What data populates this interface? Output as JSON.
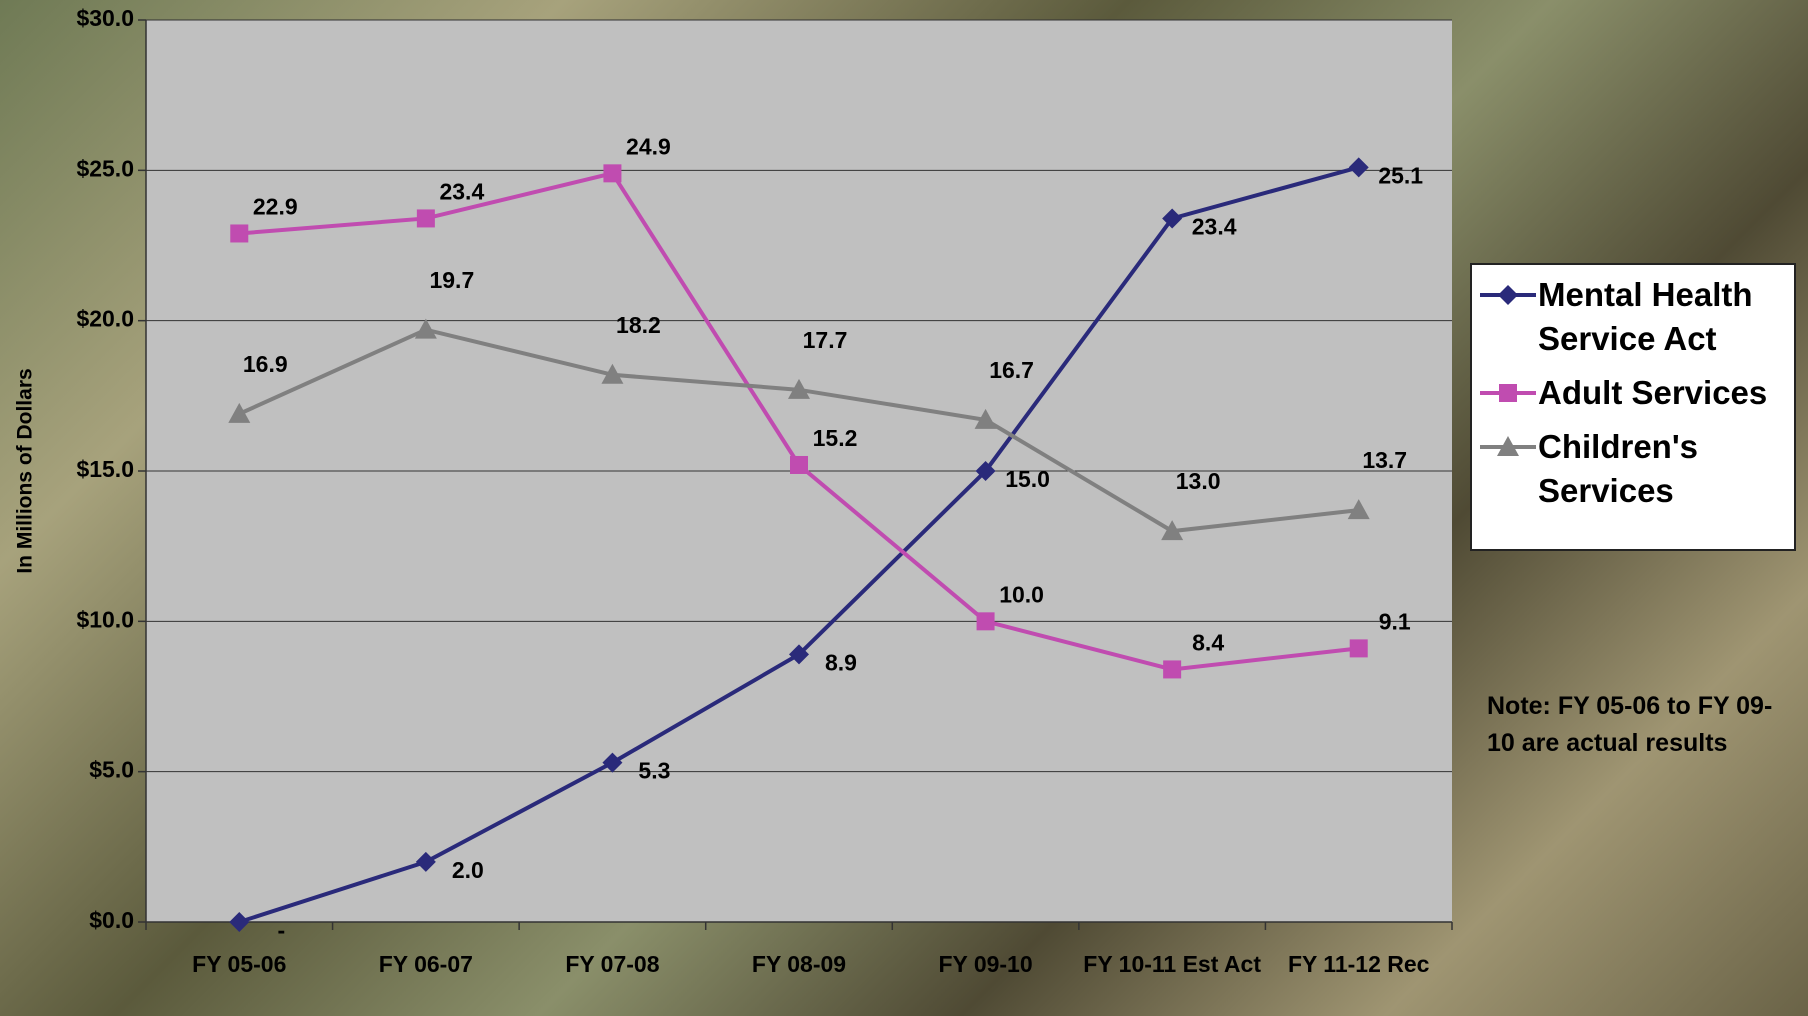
{
  "chart_data": {
    "type": "line",
    "y_label": "In Millions of Dollars",
    "categories": [
      "FY 05-06",
      "FY 06-07",
      "FY 07-08",
      "FY 08-09",
      "FY 09-10",
      "FY 10-11 Est Act",
      "FY 11-12 Rec"
    ],
    "series": [
      {
        "name": "Mental Health Service Act",
        "color": "#2a2a7a",
        "marker": "diamond",
        "values": [
          0,
          2.0,
          5.3,
          8.9,
          15.0,
          23.4,
          25.1
        ],
        "value_labels": [
          "-",
          "2.0",
          "5.3",
          "8.9",
          "15.0",
          "23.4",
          "25.1"
        ]
      },
      {
        "name": "Adult Services",
        "color": "#c04cb0",
        "marker": "square",
        "values": [
          22.9,
          23.4,
          24.9,
          15.2,
          10.0,
          8.4,
          9.1
        ],
        "value_labels": [
          "22.9",
          "23.4",
          "24.9",
          "15.2",
          "10.0",
          "8.4",
          "9.1"
        ]
      },
      {
        "name": "Children's Services",
        "color": "#808080",
        "marker": "triangle",
        "values": [
          16.9,
          19.7,
          18.2,
          17.7,
          16.7,
          13.0,
          13.7
        ],
        "value_labels": [
          "16.9",
          "19.7",
          "18.2",
          "17.7",
          "16.7",
          "13.0",
          "13.7"
        ]
      }
    ],
    "ylim": [
      0,
      30
    ],
    "yticks": [
      {
        "value": 0,
        "label": "$0.0"
      },
      {
        "value": 5,
        "label": "$5.0"
      },
      {
        "value": 10,
        "label": "$10.0"
      },
      {
        "value": 15,
        "label": "$15.0"
      },
      {
        "value": 20,
        "label": "$20.0"
      },
      {
        "value": 25,
        "label": "$25.0"
      },
      {
        "value": 30,
        "label": "$30.0"
      }
    ],
    "grid": true,
    "legend_position": "right",
    "note": "Note: FY 05-06 to FY 09-10 are actual results"
  }
}
